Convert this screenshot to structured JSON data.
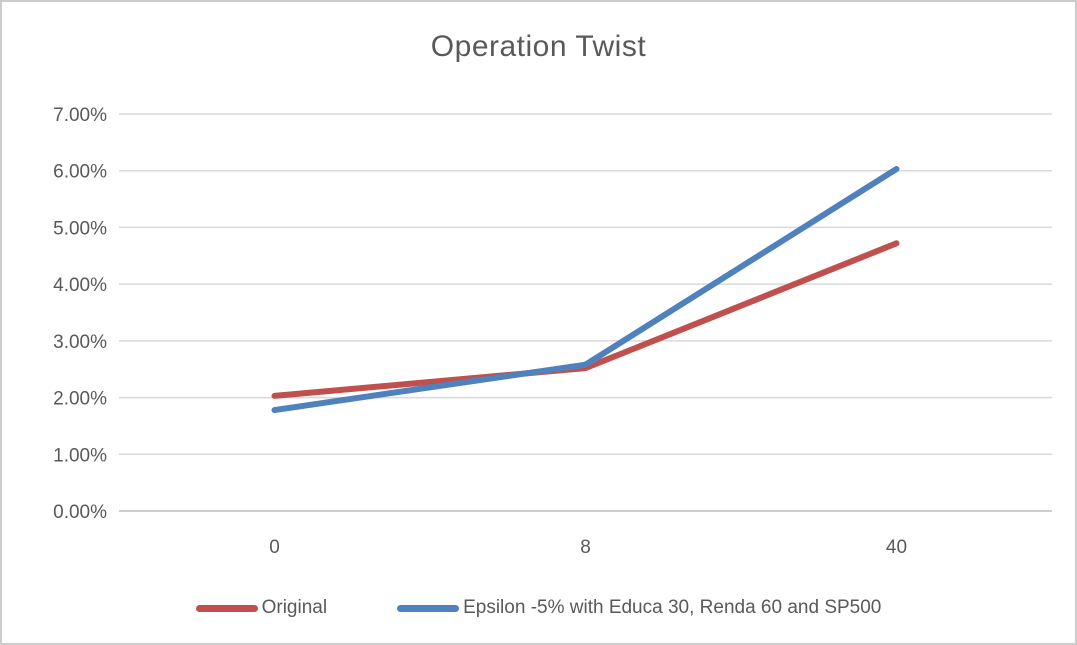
{
  "window": {
    "background_color": "#FFFFFF",
    "border_color": "#CCCCCC",
    "text_color": "#595959"
  },
  "chart_data": {
    "type": "line",
    "title": "Operation Twist",
    "categories": [
      "0",
      "8",
      "40"
    ],
    "series": [
      {
        "name": "Original",
        "color": "#C0504D",
        "values_pct": [
          2.03,
          2.52,
          4.72
        ]
      },
      {
        "name": "Epsilon -5% with Educa 30, Renda 60 and SP500",
        "color": "#4F81BD",
        "values_pct": [
          1.78,
          2.58,
          6.03
        ]
      }
    ],
    "y_axis": {
      "min_pct": 0,
      "max_pct": 7,
      "tick_step_pct": 1,
      "tick_labels": [
        "0.00%",
        "1.00%",
        "2.00%",
        "3.00%",
        "4.00%",
        "5.00%",
        "6.00%",
        "7.00%"
      ]
    },
    "x_axis": {
      "tick_labels": [
        "0",
        "8",
        "40"
      ]
    },
    "grid": "horizontal",
    "legend_position": "bottom",
    "gridline_color": "#D9D9D9",
    "axisline_color": "#BFBFBF",
    "label_color": "#595959"
  }
}
